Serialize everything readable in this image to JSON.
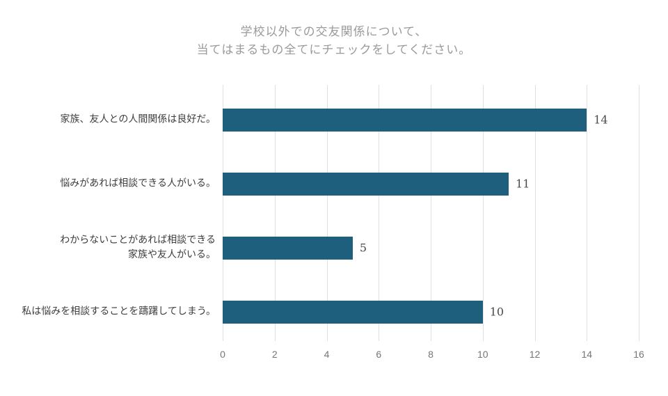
{
  "colors": {
    "bar": "#1E5F7D",
    "gridline": "#e0e0e0",
    "axis_text": "#757575",
    "category_text": "#3d3d3d",
    "value_text": "#4a4a4a",
    "title_text": "#9a9a9a",
    "background": "#ffffff"
  },
  "chart_data": {
    "type": "bar",
    "orientation": "horizontal",
    "title": "学校以外での交友関係について、\n当てはまるもの全てにチェックをしてください。",
    "categories": [
      "家族、友人との人間関係は良好だ。",
      "悩みがあれば相談できる人がいる。",
      "わからないことがあれば相談できる\n家族や友人がいる。",
      "私は悩みを相談することを躊躇してしまう。"
    ],
    "values": [
      14,
      11,
      5,
      10
    ],
    "value_labels": [
      "14",
      "11",
      "5",
      "10"
    ],
    "xlabel": "",
    "ylabel": "",
    "xlim": [
      0,
      16
    ],
    "xticks": [
      0,
      2,
      4,
      6,
      8,
      10,
      12,
      14,
      16
    ],
    "grid": true,
    "legend": false
  }
}
